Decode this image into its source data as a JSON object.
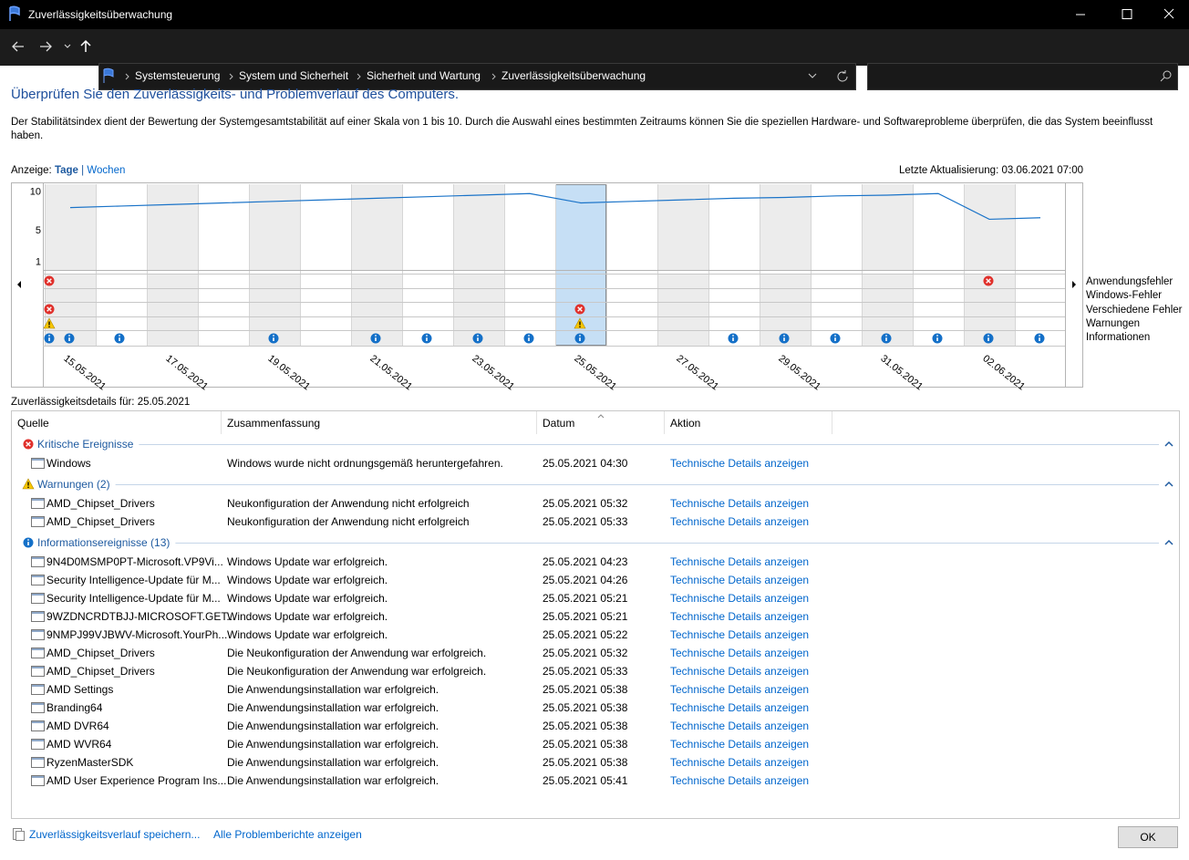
{
  "window": {
    "title": "Zuverlässigkeitsüberwachung"
  },
  "address": {
    "breadcrumb": [
      "Systemsteuerung",
      "System und Sicherheit",
      "Sicherheit und Wartung",
      "Zuverlässigkeitsüberwachung"
    ]
  },
  "heading": "Überprüfen Sie den Zuverlässigkeits- und Problemverlauf des Computers.",
  "description": "Der Stabilitätsindex dient der Bewertung der Systemgesamtstabilität auf einer Skala von 1 bis 10. Durch die Auswahl eines bestimmten Zeitraums können Sie die speziellen Hardware- und Softwareprobleme überprüfen, die das System beeinflusst haben.",
  "view": {
    "label": "Anzeige:",
    "days": "Tage",
    "separator": "|",
    "weeks": "Wochen"
  },
  "last_update": "Letzte Aktualisierung: 03.06.2021 07:00",
  "stability_chart": {
    "type": "line",
    "categories": [
      "15.05.2021",
      null,
      "17.05.2021",
      null,
      "19.05.2021",
      null,
      "21.05.2021",
      null,
      "23.05.2021",
      null,
      "25.05.2021",
      null,
      "27.05.2021",
      null,
      "29.05.2021",
      null,
      "31.05.2021",
      null,
      "02.06.2021",
      null
    ],
    "values": [
      8.0,
      8.2,
      8.4,
      8.6,
      8.8,
      9.0,
      9.2,
      9.4,
      9.6,
      9.8,
      8.6,
      8.8,
      9.0,
      9.2,
      9.3,
      9.5,
      9.6,
      9.8,
      6.5,
      6.7
    ],
    "color": "#1a73c8",
    "ylim": [
      0,
      11
    ],
    "yticks": [
      10,
      5,
      1
    ],
    "row_labels": [
      "Anwendungsfehler",
      "Windows-Fehler",
      "Verschiedene Fehler",
      "Warnungen",
      "Informationen"
    ]
  },
  "details_label": "Zuverlässigkeitsdetails für: 25.05.2021",
  "table": {
    "columns": [
      "Quelle",
      "Zusammenfassung",
      "Datum",
      "Aktion"
    ],
    "groups": [
      {
        "title": "Kritische Ereignisse",
        "rows": [
          [
            "Windows",
            "Windows wurde nicht ordnungsgemäß heruntergefahren.",
            "25.05.2021 04:30",
            "Technische Details anzeigen"
          ]
        ]
      },
      {
        "title": "Warnungen (2)",
        "rows": [
          [
            "AMD_Chipset_Drivers",
            "Neukonfiguration der Anwendung nicht erfolgreich",
            "25.05.2021 05:32",
            "Technische Details anzeigen"
          ],
          [
            "AMD_Chipset_Drivers",
            "Neukonfiguration der Anwendung nicht erfolgreich",
            "25.05.2021 05:33",
            "Technische Details anzeigen"
          ]
        ]
      },
      {
        "title": "Informationsereignisse (13)",
        "rows": [
          [
            "9N4D0MSMP0PT-Microsoft.VP9Vi...",
            "Windows Update war erfolgreich.",
            "25.05.2021 04:23",
            "Technische Details anzeigen"
          ],
          [
            "Security Intelligence-Update für M...",
            "Windows Update war erfolgreich.",
            "25.05.2021 04:26",
            "Technische Details anzeigen"
          ],
          [
            "Security Intelligence-Update für M...",
            "Windows Update war erfolgreich.",
            "25.05.2021 05:21",
            "Technische Details anzeigen"
          ],
          [
            "9WZDNCRDTBJJ-MICROSOFT.GET...",
            "Windows Update war erfolgreich.",
            "25.05.2021 05:21",
            "Technische Details anzeigen"
          ],
          [
            "9NMPJ99VJBWV-Microsoft.YourPh...",
            "Windows Update war erfolgreich.",
            "25.05.2021 05:22",
            "Technische Details anzeigen"
          ],
          [
            "AMD_Chipset_Drivers",
            "Die Neukonfiguration der Anwendung war erfolgreich.",
            "25.05.2021 05:32",
            "Technische Details anzeigen"
          ],
          [
            "AMD_Chipset_Drivers",
            "Die Neukonfiguration der Anwendung war erfolgreich.",
            "25.05.2021 05:33",
            "Technische Details anzeigen"
          ],
          [
            "AMD Settings",
            "Die Anwendungsinstallation war erfolgreich.",
            "25.05.2021 05:38",
            "Technische Details anzeigen"
          ],
          [
            "Branding64",
            "Die Anwendungsinstallation war erfolgreich.",
            "25.05.2021 05:38",
            "Technische Details anzeigen"
          ],
          [
            "AMD DVR64",
            "Die Anwendungsinstallation war erfolgreich.",
            "25.05.2021 05:38",
            "Technische Details anzeigen"
          ],
          [
            "AMD WVR64",
            "Die Anwendungsinstallation war erfolgreich.",
            "25.05.2021 05:38",
            "Technische Details anzeigen"
          ],
          [
            "RyzenMasterSDK",
            "Die Anwendungsinstallation war erfolgreich.",
            "25.05.2021 05:38",
            "Technische Details anzeigen"
          ],
          [
            "AMD User Experience Program Ins...",
            "Die Anwendungsinstallation war erfolgreich.",
            "25.05.2021 05:41",
            "Technische Details anzeigen"
          ]
        ]
      }
    ]
  },
  "footer": {
    "save": "Zuverlässigkeitsverlauf speichern...",
    "reports": "Alle Problemberichte anzeigen",
    "ok": "OK"
  }
}
